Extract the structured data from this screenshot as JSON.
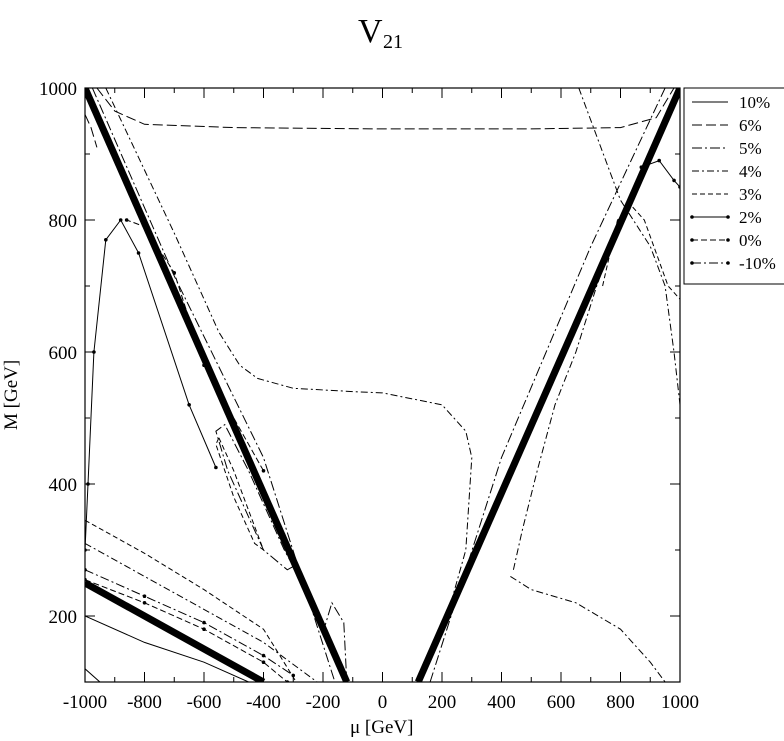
{
  "chart_data": {
    "type": "line",
    "title_main": "V",
    "title_sub": "21",
    "xlabel": "μ [GeV]",
    "ylabel": "M [GeV]",
    "xlim": [
      -1000,
      1000
    ],
    "ylim": [
      100,
      1000
    ],
    "xticks": [
      -1000,
      -800,
      -600,
      -400,
      -200,
      0,
      200,
      400,
      600,
      800,
      1000
    ],
    "yticks": [
      200,
      400,
      600,
      800,
      1000
    ],
    "legend_position": "right, outside plot",
    "legend": [
      "10%",
      "6%",
      "5%",
      "4%",
      "3%",
      "2%",
      "0%",
      "-10%"
    ],
    "boundary_lines": [
      {
        "name": "boundary",
        "x": [
          -1000,
          -120
        ],
        "y": [
          1000,
          100
        ]
      },
      {
        "name": "boundary",
        "x": [
          120,
          1000
        ],
        "y": [
          100,
          1000
        ]
      },
      {
        "name": "boundary",
        "x": [
          -1000,
          -400
        ],
        "y": [
          250,
          100
        ]
      }
    ],
    "series": [
      {
        "name": "10%",
        "dash": "",
        "lines": [
          [
            [
              -1000,
              200
            ],
            [
              -800,
              160
            ],
            [
              -600,
              130
            ],
            [
              -450,
              100
            ]
          ],
          [
            [
              -1000,
              120
            ],
            [
              -950,
              100
            ]
          ]
        ]
      },
      {
        "name": "6%",
        "dash": "10 4",
        "lines": [
          [
            [
              -960,
              1000
            ],
            [
              -900,
              965
            ],
            [
              -800,
              945
            ],
            [
              -500,
              940
            ],
            [
              0,
              938
            ],
            [
              500,
              938
            ],
            [
              800,
              940
            ],
            [
              920,
              955
            ],
            [
              980,
              1000
            ]
          ],
          [
            [
              -1000,
              960
            ],
            [
              -980,
              940
            ],
            [
              -960,
              910
            ]
          ]
        ]
      },
      {
        "name": "5%",
        "dash": "10 3 2 3",
        "lines": [
          [
            [
              -975,
              1000
            ],
            [
              -700,
              715
            ],
            [
              -400,
              440
            ],
            [
              -160,
              100
            ]
          ],
          [
            [
              160,
              100
            ],
            [
              400,
              440
            ],
            [
              700,
              760
            ],
            [
              950,
              1000
            ]
          ],
          [
            [
              -300,
              275
            ],
            [
              -330,
              300
            ],
            [
              -450,
              420
            ],
            [
              -530,
              490
            ],
            [
              -560,
              480
            ],
            [
              -520,
              420
            ],
            [
              -400,
              300
            ],
            [
              -320,
              270
            ],
            [
              -300,
              275
            ]
          ],
          [
            [
              -200,
              175
            ],
            [
              -170,
              220
            ],
            [
              -130,
              190
            ],
            [
              -120,
              100
            ]
          ]
        ]
      },
      {
        "name": "4%",
        "dash": "7 3 2 3",
        "lines": [
          [
            [
              -1000,
              310
            ],
            [
              -800,
              260
            ],
            [
              -600,
              210
            ],
            [
              -400,
              160
            ],
            [
              -220,
              100
            ]
          ],
          [
            [
              -930,
              1000
            ],
            [
              -700,
              780
            ],
            [
              -550,
              630
            ],
            [
              -480,
              580
            ],
            [
              -420,
              560
            ],
            [
              -300,
              545
            ],
            [
              -100,
              540
            ],
            [
              0,
              538
            ],
            [
              200,
              520
            ],
            [
              280,
              480
            ],
            [
              300,
              440
            ],
            [
              280,
              300
            ],
            [
              230,
              220
            ],
            [
              170,
              150
            ],
            [
              130,
              100
            ]
          ],
          [
            [
              660,
              1000
            ],
            [
              800,
              830
            ],
            [
              900,
              760
            ],
            [
              950,
              700
            ],
            [
              980,
              600
            ],
            [
              1000,
              520
            ]
          ],
          [
            [
              430,
              260
            ],
            [
              500,
              240
            ],
            [
              650,
              220
            ],
            [
              800,
              180
            ],
            [
              900,
              130
            ],
            [
              950,
              100
            ]
          ],
          [
            [
              440,
              270
            ],
            [
              470,
              330
            ],
            [
              520,
              420
            ],
            [
              580,
              520
            ],
            [
              650,
              600
            ],
            [
              720,
              700
            ],
            [
              760,
              750
            ]
          ]
        ]
      },
      {
        "name": "3%",
        "dash": "5 3",
        "lines": [
          [
            [
              -1000,
              345
            ],
            [
              -800,
              295
            ],
            [
              -600,
              240
            ],
            [
              -400,
              180
            ],
            [
              -290,
              100
            ]
          ],
          [
            [
              -550,
              470
            ],
            [
              -500,
              420
            ],
            [
              -450,
              360
            ],
            [
              -400,
              300
            ],
            [
              -430,
              310
            ],
            [
              -500,
              380
            ],
            [
              -560,
              460
            ],
            [
              -550,
              470
            ]
          ],
          [
            [
              740,
              700
            ],
            [
              790,
              800
            ],
            [
              840,
              820
            ],
            [
              880,
              800
            ],
            [
              920,
              750
            ],
            [
              960,
              700
            ],
            [
              1000,
              680
            ]
          ]
        ]
      },
      {
        "name": "2%",
        "dash": "",
        "marker": "dot",
        "lines": [
          [
            [
              -560,
              425
            ],
            [
              -650,
              520
            ],
            [
              -820,
              750
            ],
            [
              -880,
              800
            ],
            [
              -930,
              770
            ],
            [
              -970,
              600
            ],
            [
              -990,
              400
            ],
            [
              -1000,
              300
            ]
          ],
          [
            [
              870,
              880
            ],
            [
              930,
              890
            ],
            [
              980,
              860
            ],
            [
              1000,
              850
            ]
          ]
        ]
      },
      {
        "name": "0%",
        "dash": "6 3",
        "marker": "dot",
        "lines": [
          [
            [
              -1000,
              255
            ],
            [
              -800,
              220
            ],
            [
              -600,
              180
            ],
            [
              -400,
              130
            ],
            [
              -320,
              100
            ]
          ],
          [
            [
              -400,
              420
            ],
            [
              -600,
              580
            ],
            [
              -700,
              720
            ],
            [
              -800,
              790
            ],
            [
              -860,
              800
            ]
          ]
        ]
      },
      {
        "name": "-10%",
        "dash": "9 3 2 3",
        "marker": "dot",
        "lines": [
          [
            [
              -1000,
              270
            ],
            [
              -800,
              230
            ],
            [
              -600,
              190
            ],
            [
              -400,
              140
            ],
            [
              -300,
              110
            ]
          ]
        ]
      }
    ]
  }
}
